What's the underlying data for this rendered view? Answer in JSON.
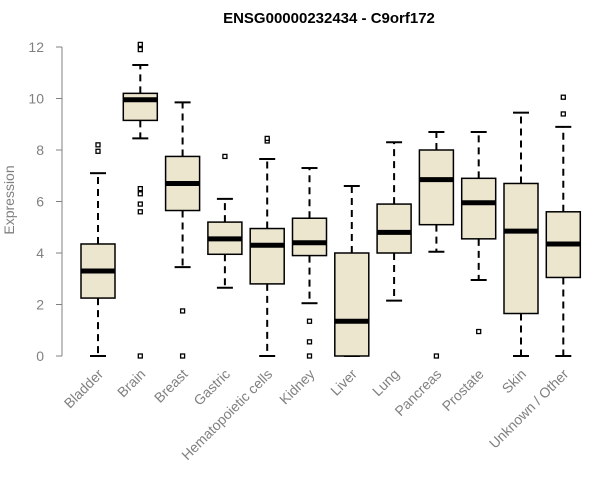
{
  "colors": {
    "box_fill": "#ede6cf",
    "stroke": "#000000",
    "axis": "#808080",
    "text": "#808080"
  },
  "chart_data": {
    "type": "box",
    "title": "ENSG00000232434 - C9orf172",
    "ylabel": "Expression",
    "xlabel": "",
    "ylim": [
      0,
      12
    ],
    "yticks": [
      0,
      2,
      4,
      6,
      8,
      10,
      12
    ],
    "grid": false,
    "categories": [
      "Bladder",
      "Brain",
      "Breast",
      "Gastric",
      "Hematopoietic cells",
      "Kidney",
      "Liver",
      "Lung",
      "Pancreas",
      "Prostate",
      "Skin",
      "Unknown / Other"
    ],
    "boxes": [
      {
        "q1": 2.25,
        "median": 3.3,
        "q3": 4.35,
        "whisker_low": 0.0,
        "whisker_high": 7.1,
        "outliers": [
          7.95,
          8.2
        ]
      },
      {
        "q1": 9.15,
        "median": 9.95,
        "q3": 10.2,
        "whisker_low": 8.45,
        "whisker_high": 11.3,
        "outliers": [
          0.0,
          5.6,
          5.9,
          6.3,
          6.5,
          11.9,
          12.1
        ]
      },
      {
        "q1": 5.65,
        "median": 6.7,
        "q3": 7.75,
        "whisker_low": 3.45,
        "whisker_high": 9.85,
        "outliers": [
          0.0,
          1.75
        ]
      },
      {
        "q1": 3.95,
        "median": 4.55,
        "q3": 5.2,
        "whisker_low": 2.65,
        "whisker_high": 6.1,
        "outliers": [
          7.75
        ]
      },
      {
        "q1": 2.8,
        "median": 4.3,
        "q3": 4.95,
        "whisker_low": 0.0,
        "whisker_high": 7.65,
        "outliers": [
          8.35,
          8.45
        ]
      },
      {
        "q1": 3.9,
        "median": 4.4,
        "q3": 5.35,
        "whisker_low": 2.05,
        "whisker_high": 7.3,
        "outliers": [
          0.0,
          0.55,
          1.35
        ]
      },
      {
        "q1": 0.0,
        "median": 1.35,
        "q3": 4.0,
        "whisker_low": 0.0,
        "whisker_high": 6.6,
        "outliers": []
      },
      {
        "q1": 4.0,
        "median": 4.8,
        "q3": 5.9,
        "whisker_low": 2.15,
        "whisker_high": 8.3,
        "outliers": []
      },
      {
        "q1": 5.1,
        "median": 6.85,
        "q3": 8.0,
        "whisker_low": 4.05,
        "whisker_high": 8.7,
        "outliers": [
          0.0
        ]
      },
      {
        "q1": 4.55,
        "median": 5.95,
        "q3": 6.9,
        "whisker_low": 2.95,
        "whisker_high": 8.7,
        "outliers": [
          0.95
        ]
      },
      {
        "q1": 1.65,
        "median": 4.85,
        "q3": 6.7,
        "whisker_low": 0.0,
        "whisker_high": 9.45,
        "outliers": []
      },
      {
        "q1": 3.05,
        "median": 4.35,
        "q3": 5.6,
        "whisker_low": 0.0,
        "whisker_high": 8.9,
        "outliers": [
          9.4,
          10.05
        ]
      }
    ]
  }
}
